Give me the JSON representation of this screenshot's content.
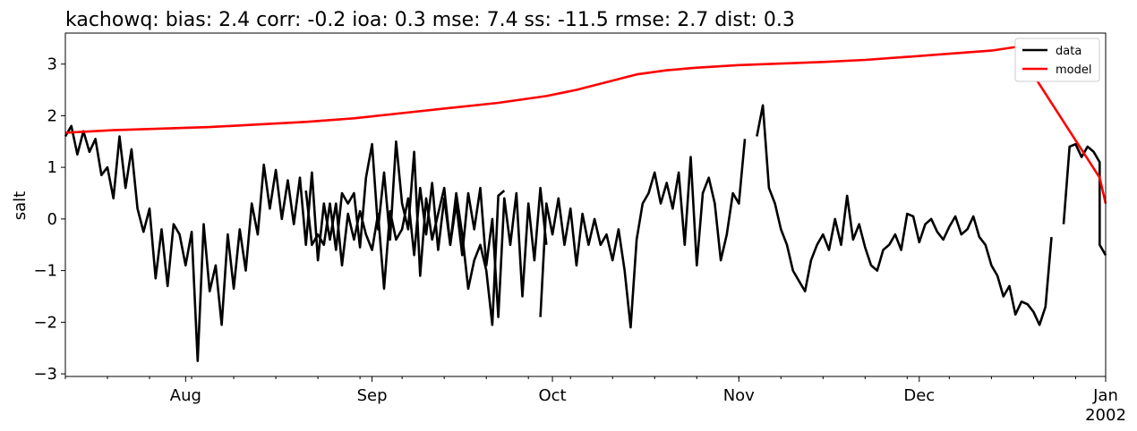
{
  "chart_data": {
    "type": "line",
    "title": "kachowq: bias: 2.4  corr: -0.2  ioa: 0.3  mse: 7.4  ss: -11.5  rmse: 2.7  dist: 0.3",
    "xlabel": "",
    "ylabel": "salt",
    "x_range": [
      "2001-07-12",
      "2002-01-01"
    ],
    "ylim": [
      -3.05,
      3.6
    ],
    "x_ticks": [
      {
        "date": "2001-08-01",
        "label": "Aug"
      },
      {
        "date": "2001-09-01",
        "label": "Sep"
      },
      {
        "date": "2001-10-01",
        "label": "Oct"
      },
      {
        "date": "2001-11-01",
        "label": "Nov"
      },
      {
        "date": "2001-12-01",
        "label": "Dec"
      },
      {
        "date": "2002-01-01",
        "label": "Jan",
        "sublabel": "2002"
      }
    ],
    "y_ticks": [
      {
        "value": 3,
        "label": "3"
      },
      {
        "value": 2,
        "label": "2"
      },
      {
        "value": 1,
        "label": "1"
      },
      {
        "value": 0,
        "label": "0"
      },
      {
        "value": -1,
        "label": "−1"
      },
      {
        "value": -2,
        "label": "−2"
      },
      {
        "value": -3,
        "label": "−3"
      }
    ],
    "grid": false,
    "legend_position": "top-right",
    "series": [
      {
        "name": "data",
        "color": "#000000",
        "segments": [
          [
            [
              "2001-07-12",
              1.6
            ],
            [
              "2001-07-13",
              1.8
            ],
            [
              "2001-07-14",
              1.25
            ],
            [
              "2001-07-15",
              1.7
            ],
            [
              "2001-07-16",
              1.3
            ],
            [
              "2001-07-17",
              1.55
            ],
            [
              "2001-07-18",
              0.85
            ],
            [
              "2001-07-19",
              1.0
            ],
            [
              "2001-07-20",
              0.4
            ],
            [
              "2001-07-21",
              1.6
            ],
            [
              "2001-07-22",
              0.6
            ],
            [
              "2001-07-23",
              1.35
            ],
            [
              "2001-07-24",
              0.2
            ],
            [
              "2001-07-25",
              -0.25
            ],
            [
              "2001-07-26",
              0.2
            ],
            [
              "2001-07-27",
              -1.15
            ],
            [
              "2001-07-28",
              -0.2
            ],
            [
              "2001-07-29",
              -1.3
            ],
            [
              "2001-07-30",
              -0.1
            ],
            [
              "2001-07-31",
              -0.3
            ],
            [
              "2001-08-01",
              -0.9
            ],
            [
              "2001-08-02",
              -0.25
            ],
            [
              "2001-08-03",
              -2.75
            ],
            [
              "2001-08-04",
              -0.1
            ],
            [
              "2001-08-05",
              -1.4
            ],
            [
              "2001-08-06",
              -0.9
            ],
            [
              "2001-08-07",
              -2.05
            ],
            [
              "2001-08-08",
              -0.3
            ],
            [
              "2001-08-09",
              -1.35
            ],
            [
              "2001-08-10",
              -0.2
            ],
            [
              "2001-08-11",
              -1.0
            ],
            [
              "2001-08-12",
              0.3
            ],
            [
              "2001-08-13",
              -0.3
            ],
            [
              "2001-08-14",
              1.05
            ],
            [
              "2001-08-15",
              0.2
            ],
            [
              "2001-08-16",
              0.95
            ],
            [
              "2001-08-17",
              0.0
            ],
            [
              "2001-08-18",
              0.75
            ],
            [
              "2001-08-19",
              -0.1
            ],
            [
              "2001-08-20",
              0.8
            ],
            [
              "2001-08-21",
              -0.5
            ],
            [
              "2001-08-22",
              0.9
            ],
            [
              "2001-08-23",
              -0.8
            ],
            [
              "2001-08-24",
              0.3
            ],
            [
              "2001-08-25",
              -0.4
            ],
            [
              "2001-08-26",
              0.3
            ],
            [
              "2001-08-27",
              -0.9
            ],
            [
              "2001-08-28",
              0.1
            ],
            [
              "2001-08-29",
              -0.4
            ],
            [
              "2001-08-30",
              0.15
            ],
            [
              "2001-08-31",
              -0.3
            ],
            [
              "2001-09-01",
              -0.6
            ],
            [
              "2001-09-02",
              0.1
            ],
            [
              "2001-09-03",
              -1.35
            ],
            [
              "2001-09-04",
              0.15
            ],
            [
              "2001-09-05",
              -0.4
            ],
            [
              "2001-09-06",
              -0.2
            ],
            [
              "2001-09-07",
              0.4
            ],
            [
              "2001-09-08",
              -0.7
            ],
            [
              "2001-09-09",
              0.6
            ],
            [
              "2001-09-10",
              -0.3
            ],
            [
              "2001-09-11",
              0.7
            ],
            [
              "2001-09-12",
              -0.6
            ],
            [
              "2001-09-13",
              0.4
            ],
            [
              "2001-09-14",
              -0.5
            ],
            [
              "2001-09-15",
              0.5
            ],
            [
              "2001-09-16",
              -0.3
            ],
            [
              "2001-09-17",
              -1.35
            ],
            [
              "2001-09-18",
              -0.8
            ],
            [
              "2001-09-19",
              -0.5
            ],
            [
              "2001-09-20",
              -1.0
            ],
            [
              "2001-09-21",
              -2.05
            ],
            [
              "2001-09-22",
              0.45
            ],
            [
              "2001-09-23",
              0.55
            ]
          ],
          [
            [
              "2001-08-21",
              0.55
            ],
            [
              "2001-08-22",
              -0.5
            ],
            [
              "2001-08-23",
              -0.3
            ],
            [
              "2001-08-24",
              -0.5
            ],
            [
              "2001-08-25",
              0.3
            ],
            [
              "2001-08-26",
              -0.6
            ],
            [
              "2001-08-27",
              0.5
            ],
            [
              "2001-08-28",
              0.3
            ],
            [
              "2001-08-29",
              0.5
            ],
            [
              "2001-08-30",
              -0.55
            ],
            [
              "2001-08-31",
              0.8
            ],
            [
              "2001-09-01",
              1.45
            ],
            [
              "2001-09-02",
              -0.2
            ],
            [
              "2001-09-03",
              0.9
            ],
            [
              "2001-09-04",
              -0.4
            ],
            [
              "2001-09-05",
              1.5
            ],
            [
              "2001-09-06",
              0.3
            ],
            [
              "2001-09-07",
              -0.2
            ],
            [
              "2001-09-08",
              1.3
            ],
            [
              "2001-09-09",
              -1.1
            ],
            [
              "2001-09-10",
              0.4
            ],
            [
              "2001-09-11",
              -0.4
            ],
            [
              "2001-09-12",
              0.1
            ],
            [
              "2001-09-13",
              0.6
            ],
            [
              "2001-09-14",
              -0.5
            ],
            [
              "2001-09-15",
              0.3
            ],
            [
              "2001-09-16",
              -0.7
            ],
            [
              "2001-09-17",
              0.5
            ],
            [
              "2001-09-18",
              -0.2
            ],
            [
              "2001-09-19",
              0.6
            ],
            [
              "2001-09-20",
              -0.9
            ],
            [
              "2001-09-21",
              0.0
            ],
            [
              "2001-09-22",
              -1.9
            ],
            [
              "2001-09-23",
              0.4
            ],
            [
              "2001-09-24",
              -0.5
            ],
            [
              "2001-09-25",
              0.5
            ],
            [
              "2001-09-26",
              -1.5
            ],
            [
              "2001-09-27",
              0.3
            ],
            [
              "2001-09-28",
              -0.8
            ],
            [
              "2001-09-29",
              0.6
            ],
            [
              "2001-09-30",
              -0.5
            ]
          ],
          [
            [
              "2001-09-29",
              -1.9
            ],
            [
              "2001-09-30",
              0.3
            ],
            [
              "2001-10-01",
              -0.3
            ],
            [
              "2001-10-02",
              0.4
            ],
            [
              "2001-10-03",
              -0.5
            ],
            [
              "2001-10-04",
              0.2
            ],
            [
              "2001-10-05",
              -0.9
            ],
            [
              "2001-10-06",
              0.1
            ],
            [
              "2001-10-07",
              -0.5
            ],
            [
              "2001-10-08",
              0.0
            ],
            [
              "2001-10-09",
              -0.5
            ],
            [
              "2001-10-10",
              -0.3
            ],
            [
              "2001-10-11",
              -0.8
            ],
            [
              "2001-10-12",
              -0.2
            ],
            [
              "2001-10-13",
              -1.0
            ],
            [
              "2001-10-14",
              -2.1
            ],
            [
              "2001-10-15",
              -0.4
            ],
            [
              "2001-10-16",
              0.3
            ],
            [
              "2001-10-17",
              0.5
            ],
            [
              "2001-10-18",
              0.9
            ],
            [
              "2001-10-19",
              0.3
            ],
            [
              "2001-10-20",
              0.7
            ],
            [
              "2001-10-21",
              0.2
            ],
            [
              "2001-10-22",
              0.9
            ],
            [
              "2001-10-23",
              -0.5
            ],
            [
              "2001-10-24",
              1.2
            ],
            [
              "2001-10-25",
              -0.9
            ],
            [
              "2001-10-26",
              0.5
            ],
            [
              "2001-10-27",
              0.8
            ],
            [
              "2001-10-28",
              0.3
            ],
            [
              "2001-10-29",
              -0.8
            ],
            [
              "2001-10-30",
              -0.3
            ],
            [
              "2001-10-31",
              0.5
            ],
            [
              "2001-11-01",
              0.3
            ],
            [
              "2001-11-02",
              1.55
            ]
          ],
          [
            [
              "2001-11-04",
              1.6
            ],
            [
              "2001-11-05",
              2.2
            ],
            [
              "2001-11-06",
              0.6
            ],
            [
              "2001-11-07",
              0.3
            ],
            [
              "2001-11-08",
              -0.2
            ],
            [
              "2001-11-09",
              -0.5
            ],
            [
              "2001-11-10",
              -1.0
            ],
            [
              "2001-11-11",
              -1.2
            ],
            [
              "2001-11-12",
              -1.4
            ],
            [
              "2001-11-13",
              -0.8
            ],
            [
              "2001-11-14",
              -0.5
            ],
            [
              "2001-11-15",
              -0.3
            ],
            [
              "2001-11-16",
              -0.6
            ],
            [
              "2001-11-17",
              0.0
            ],
            [
              "2001-11-18",
              -0.5
            ],
            [
              "2001-11-19",
              0.45
            ],
            [
              "2001-11-20",
              -0.4
            ],
            [
              "2001-11-21",
              -0.1
            ],
            [
              "2001-11-22",
              -0.55
            ],
            [
              "2001-11-23",
              -0.9
            ],
            [
              "2001-11-24",
              -1.0
            ],
            [
              "2001-11-25",
              -0.6
            ],
            [
              "2001-11-26",
              -0.5
            ],
            [
              "2001-11-27",
              -0.3
            ],
            [
              "2001-11-28",
              -0.6
            ],
            [
              "2001-11-29",
              0.1
            ],
            [
              "2001-11-30",
              0.05
            ],
            [
              "2001-12-01",
              -0.45
            ],
            [
              "2001-12-02",
              -0.1
            ],
            [
              "2001-12-03",
              0.0
            ],
            [
              "2001-12-04",
              -0.25
            ],
            [
              "2001-12-05",
              -0.4
            ],
            [
              "2001-12-06",
              -0.15
            ],
            [
              "2001-12-07",
              0.05
            ],
            [
              "2001-12-08",
              -0.3
            ],
            [
              "2001-12-09",
              -0.2
            ],
            [
              "2001-12-10",
              0.05
            ],
            [
              "2001-12-11",
              -0.35
            ],
            [
              "2001-12-12",
              -0.5
            ],
            [
              "2001-12-13",
              -0.9
            ],
            [
              "2001-12-14",
              -1.1
            ],
            [
              "2001-12-15",
              -1.5
            ],
            [
              "2001-12-16",
              -1.3
            ],
            [
              "2001-12-17",
              -1.85
            ],
            [
              "2001-12-18",
              -1.6
            ],
            [
              "2001-12-19",
              -1.65
            ],
            [
              "2001-12-20",
              -1.8
            ],
            [
              "2001-12-21",
              -2.05
            ],
            [
              "2001-12-22",
              -1.7
            ],
            [
              "2001-12-23",
              -0.35
            ]
          ],
          [
            [
              "2001-12-25",
              -0.1
            ],
            [
              "2001-12-26",
              1.4
            ],
            [
              "2001-12-27",
              1.45
            ],
            [
              "2001-12-28",
              1.2
            ],
            [
              "2001-12-29",
              1.4
            ],
            [
              "2001-12-30",
              1.3
            ],
            [
              "2001-12-31",
              1.1
            ],
            [
              "2001-12-31",
              0.9
            ],
            [
              "2001-12-31",
              0.5
            ],
            [
              "2001-12-31",
              0.3
            ],
            [
              "2001-12-31",
              0.1
            ],
            [
              "2001-12-31",
              0.0
            ],
            [
              "2001-12-31",
              -0.2
            ],
            [
              "2001-12-31",
              -0.5
            ],
            [
              "2002-01-01",
              -0.7
            ]
          ]
        ]
      },
      {
        "name": "model",
        "color": "#ff0000",
        "segments": [
          [
            [
              "2001-07-12",
              1.67
            ],
            [
              "2001-07-20",
              1.72
            ],
            [
              "2001-07-28",
              1.75
            ],
            [
              "2001-08-05",
              1.78
            ],
            [
              "2001-08-13",
              1.83
            ],
            [
              "2001-08-21",
              1.88
            ],
            [
              "2001-08-29",
              1.95
            ],
            [
              "2001-09-06",
              2.05
            ],
            [
              "2001-09-14",
              2.15
            ],
            [
              "2001-09-22",
              2.25
            ],
            [
              "2001-09-30",
              2.38
            ],
            [
              "2001-10-05",
              2.5
            ],
            [
              "2001-10-10",
              2.65
            ],
            [
              "2001-10-15",
              2.8
            ],
            [
              "2001-10-20",
              2.88
            ],
            [
              "2001-10-25",
              2.93
            ],
            [
              "2001-11-01",
              2.98
            ],
            [
              "2001-11-08",
              3.01
            ],
            [
              "2001-11-15",
              3.04
            ],
            [
              "2001-11-22",
              3.08
            ],
            [
              "2001-11-29",
              3.14
            ],
            [
              "2001-12-06",
              3.2
            ],
            [
              "2001-12-13",
              3.26
            ],
            [
              "2001-12-17",
              3.33
            ],
            [
              "2001-12-31",
              0.8
            ],
            [
              "2002-01-01",
              0.3
            ]
          ]
        ]
      }
    ]
  }
}
